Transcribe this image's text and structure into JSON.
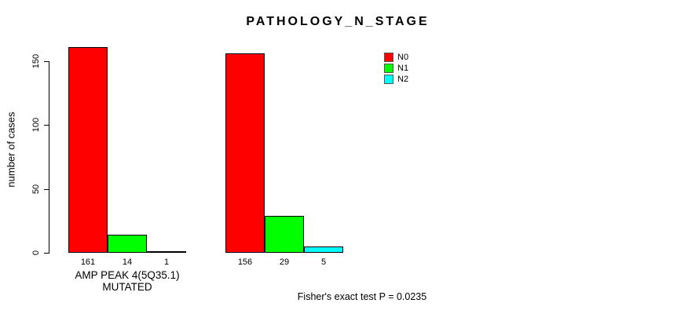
{
  "page": {
    "background": "#FFFFFF"
  },
  "chart_data": {
    "type": "bar",
    "title": "PATHOLOGY_N_STAGE",
    "xlabel": "",
    "ylabel": "number of cases",
    "ylim": [
      0,
      165
    ],
    "yticks": [
      0,
      50,
      100,
      150
    ],
    "grid": false,
    "legend_position": "top-right",
    "legend": [
      {
        "label": "N0",
        "color": "#FF0000"
      },
      {
        "label": "N1",
        "color": "#00FF00"
      },
      {
        "label": "N2",
        "color": "#00FFFF"
      }
    ],
    "groups": [
      {
        "label": "AMP PEAK 4(5Q35.1) MUTATED",
        "values": [
          161,
          14,
          1
        ]
      },
      {
        "label": "",
        "values": [
          156,
          29,
          5
        ]
      }
    ],
    "bar_value_labels": true,
    "annotation": "Fisher's exact test P = 0.0235"
  }
}
